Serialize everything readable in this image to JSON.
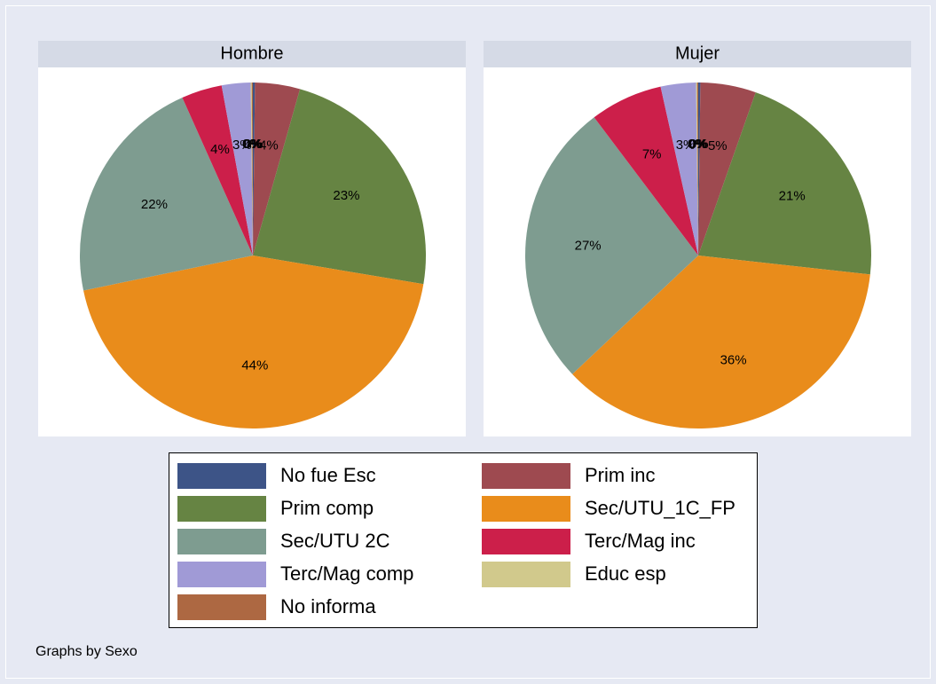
{
  "chart_data": [
    {
      "type": "pie",
      "title": "Hombre",
      "values": [
        0.2,
        4.2,
        23.3,
        44.2,
        21.6,
        3.8,
        2.7,
        0.1,
        0.1
      ],
      "value_labels": [
        "0%",
        "4%",
        "23%",
        "44%",
        "22%",
        "4%",
        "3%",
        "0%",
        "0%"
      ]
    },
    {
      "type": "pie",
      "title": "Mujer",
      "values": [
        0.2,
        5.2,
        21.4,
        36.3,
        26.8,
        6.8,
        3.3,
        0.1,
        0.1
      ],
      "value_labels": [
        "0%",
        "5%",
        "21%",
        "36%",
        "27%",
        "7%",
        "3%",
        "0%",
        "0%"
      ]
    }
  ],
  "legend": {
    "categories": [
      "No fue Esc",
      "Prim inc",
      "Prim comp",
      "Sec/UTU_1C_FP",
      "Sec/UTU 2C",
      "Terc/Mag inc",
      "Terc/Mag comp",
      "Educ esp",
      "No informa"
    ],
    "colors": [
      "#3d5487",
      "#9e4a50",
      "#668443",
      "#e98c1b",
      "#7e9c90",
      "#cc1f4a",
      "#a09ad6",
      "#d1c98c",
      "#ad6842"
    ]
  },
  "note": "Graphs by Sexo"
}
